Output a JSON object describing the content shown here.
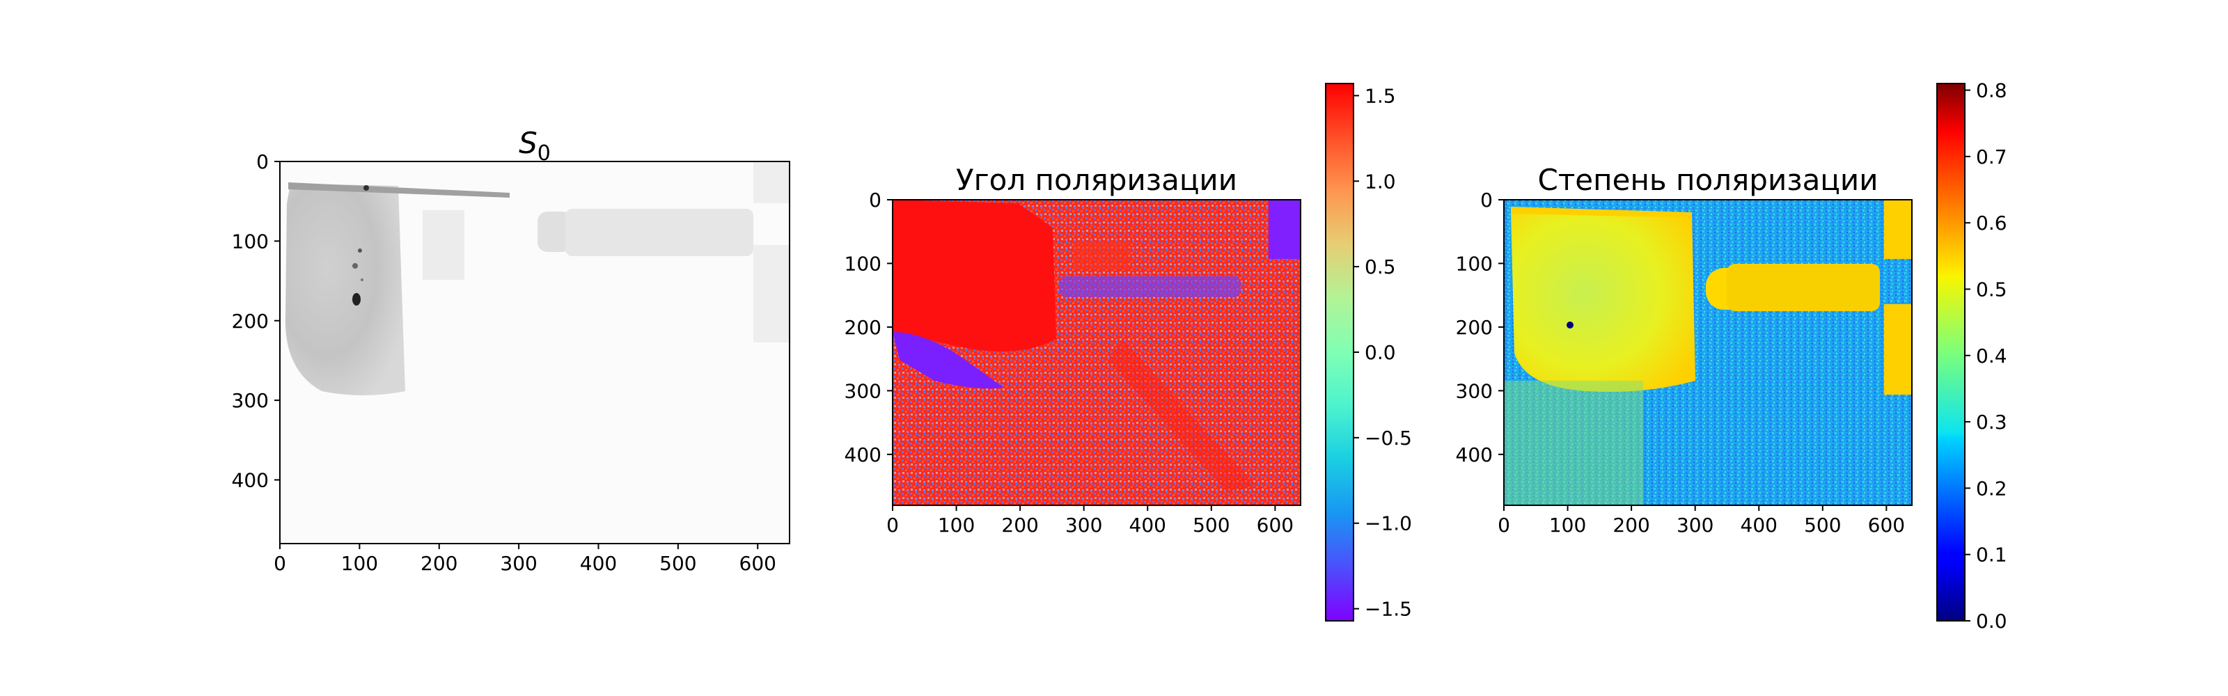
{
  "chart_data": [
    {
      "type": "heatmap",
      "title_base": "S",
      "title_sub": "0",
      "colormap": "Greys",
      "xlim": [
        0,
        640
      ],
      "ylim": [
        0,
        480
      ],
      "xticks": [
        "0",
        "100",
        "200",
        "300",
        "400",
        "500",
        "600"
      ],
      "yticks": [
        "0",
        "100",
        "200",
        "300",
        "400"
      ],
      "colorbar": false
    },
    {
      "type": "heatmap",
      "title": "Угол поляризации",
      "colormap": "rainbow",
      "xlim": [
        0,
        640
      ],
      "ylim": [
        0,
        480
      ],
      "xticks": [
        "0",
        "100",
        "200",
        "300",
        "400",
        "500",
        "600"
      ],
      "yticks": [
        "0",
        "100",
        "200",
        "300",
        "400"
      ],
      "colorbar": true,
      "colorbar_range": [
        -1.5708,
        1.5708
      ],
      "colorbar_ticks": [
        "1.5",
        "1.0",
        "0.5",
        "0.0",
        "−0.5",
        "−1.0",
        "−1.5"
      ]
    },
    {
      "type": "heatmap",
      "title": "Степень поляризации",
      "colormap": "jet",
      "xlim": [
        0,
        640
      ],
      "ylim": [
        0,
        480
      ],
      "xticks": [
        "0",
        "100",
        "200",
        "300",
        "400",
        "500",
        "600"
      ],
      "yticks": [
        "0",
        "100",
        "200",
        "300",
        "400"
      ],
      "colorbar": true,
      "colorbar_range": [
        0.0,
        0.81
      ],
      "colorbar_ticks": [
        "0.8",
        "0.7",
        "0.6",
        "0.5",
        "0.4",
        "0.3",
        "0.2",
        "0.1",
        "0.0"
      ]
    }
  ]
}
